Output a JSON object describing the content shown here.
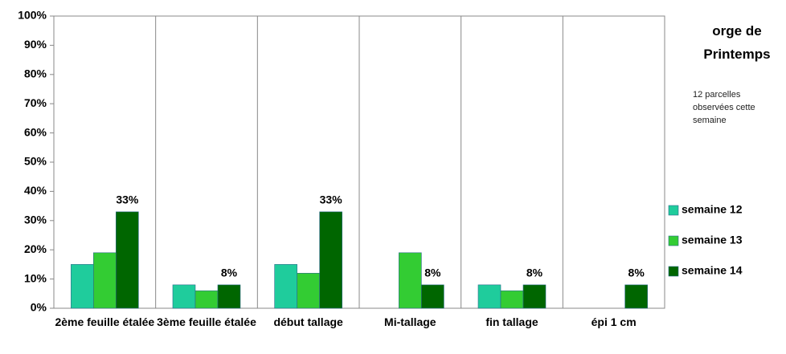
{
  "chart_data": {
    "type": "bar",
    "title": "orge de Printemps",
    "subtitle": "12 parcelles observées cette semaine",
    "categories": [
      "2ème feuille étalée",
      "3ème feuille étalée",
      "début tallage",
      "Mi-tallage",
      "fin tallage",
      "épi 1 cm"
    ],
    "series": [
      {
        "name": "semaine 12",
        "color": "#1fcc9c",
        "values": [
          15,
          8,
          15,
          0,
          8,
          0
        ]
      },
      {
        "name": "semaine 13",
        "color": "#33cc33",
        "values": [
          19,
          6,
          12,
          19,
          6,
          0
        ]
      },
      {
        "name": "semaine 14",
        "color": "#006600",
        "values": [
          33,
          8,
          33,
          8,
          8,
          8
        ],
        "value_labels": [
          "33%",
          "8%",
          "33%",
          "8%",
          "8%",
          "8%"
        ]
      }
    ],
    "ylim": [
      0,
      100
    ],
    "yticks": [
      {
        "value": 0,
        "label": "0%"
      },
      {
        "value": 10,
        "label": "10%"
      },
      {
        "value": 20,
        "label": "20%"
      },
      {
        "value": 30,
        "label": "30%"
      },
      {
        "value": 40,
        "label": "40%"
      },
      {
        "value": 50,
        "label": "50%"
      },
      {
        "value": 60,
        "label": "60%"
      },
      {
        "value": 70,
        "label": "70%"
      },
      {
        "value": 80,
        "label": "80%"
      },
      {
        "value": 90,
        "label": "90%"
      },
      {
        "value": 100,
        "label": "100%"
      }
    ],
    "legend": "right"
  }
}
